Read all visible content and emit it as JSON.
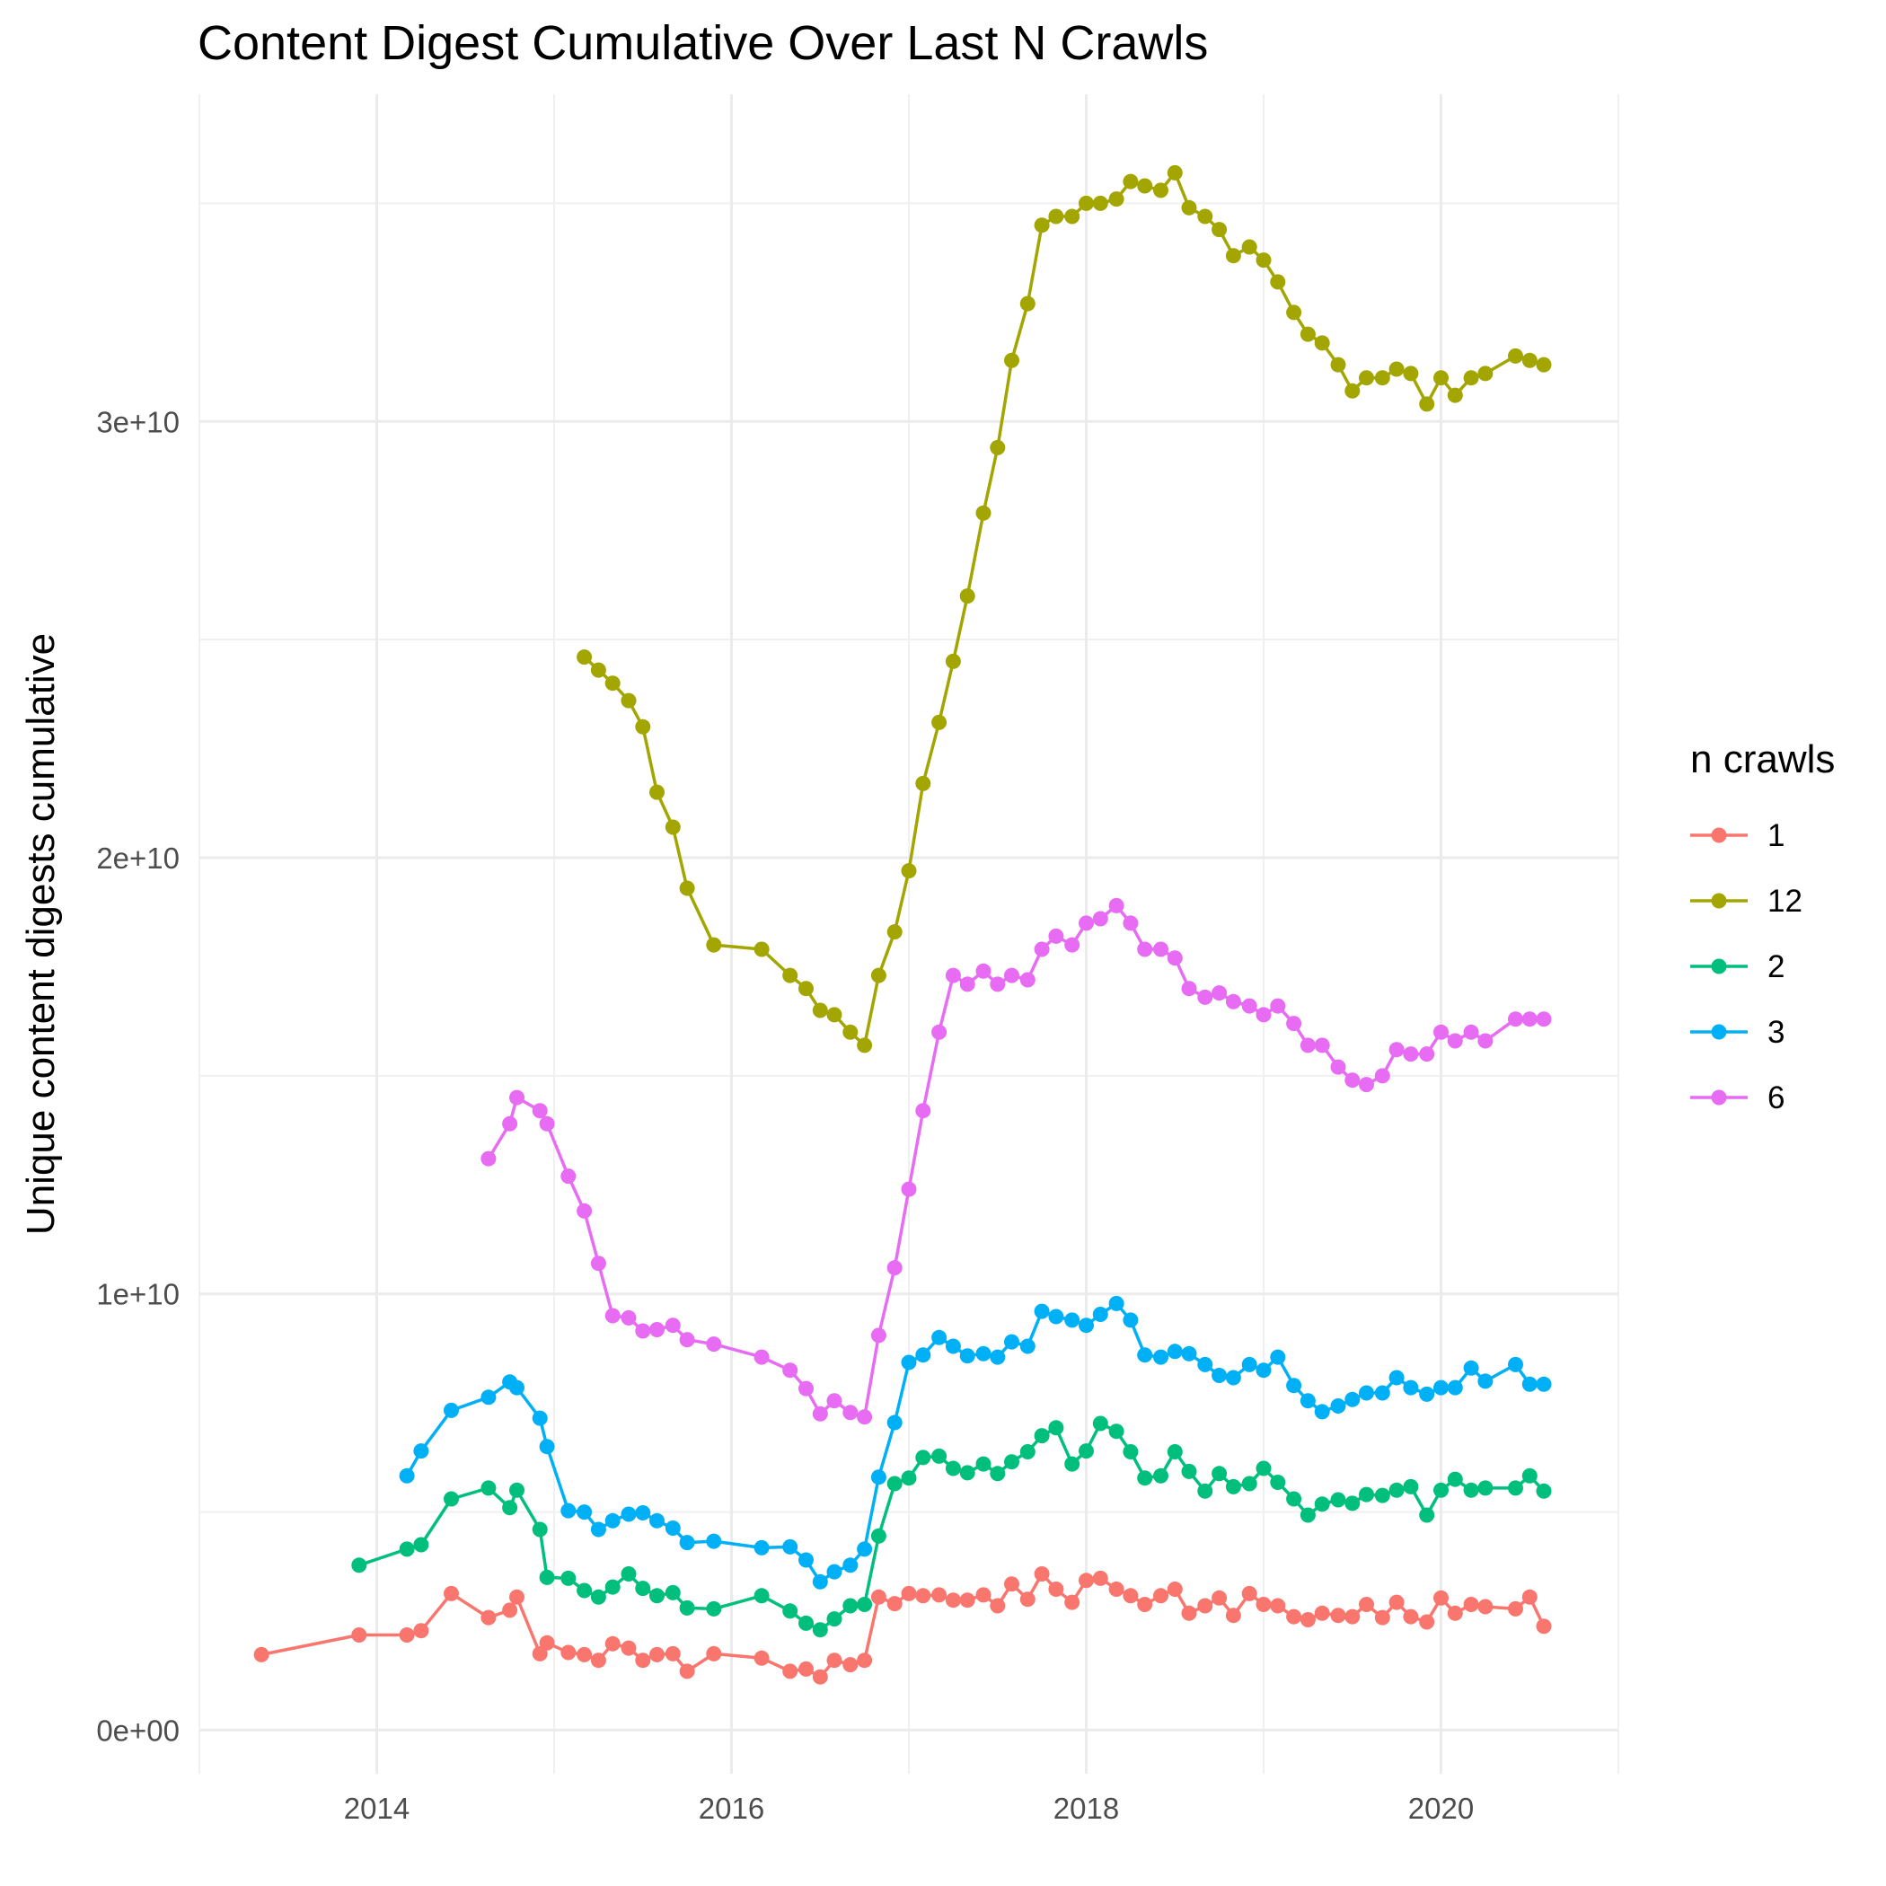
{
  "chart_data": {
    "type": "line",
    "title": "Content Digest Cumulative Over Last N Crawls",
    "xlabel": "",
    "ylabel": "Unique content digests cumulative",
    "xlim": [
      2013.0,
      2021.0
    ],
    "ylim": [
      -1000000000.0,
      37500000000.0
    ],
    "x_ticks": [
      2014,
      2016,
      2018,
      2020
    ],
    "x_tick_labels": [
      "2014",
      "2016",
      "2018",
      "2020"
    ],
    "y_ticks": [
      0,
      10000000000.0,
      20000000000.0,
      30000000000.0
    ],
    "y_tick_labels": [
      "0e+00",
      "1e+10",
      "2e+10",
      "3e+10"
    ],
    "grid": true,
    "legend": {
      "title": "n crawls",
      "position": "right"
    },
    "series": [
      {
        "name": "1",
        "color": "#F8766D",
        "x": [
          2013.35,
          2013.9,
          2014.17,
          2014.25,
          2014.42,
          2014.63,
          2014.75,
          2014.79,
          2014.92,
          2014.96,
          2015.08,
          2015.17,
          2015.25,
          2015.33,
          2015.42,
          2015.5,
          2015.58,
          2015.67,
          2015.75,
          2015.9,
          2016.17,
          2016.33,
          2016.42,
          2016.5,
          2016.58,
          2016.67,
          2016.75,
          2016.83,
          2016.92,
          2017.0,
          2017.08,
          2017.17,
          2017.25,
          2017.33,
          2017.42,
          2017.5,
          2017.58,
          2017.67,
          2017.75,
          2017.83,
          2017.92,
          2018.0,
          2018.08,
          2018.17,
          2018.25,
          2018.33,
          2018.42,
          2018.5,
          2018.58,
          2018.67,
          2018.75,
          2018.83,
          2018.92,
          2019.0,
          2019.08,
          2019.17,
          2019.25,
          2019.33,
          2019.42,
          2019.5,
          2019.58,
          2019.67,
          2019.75,
          2019.83,
          2019.92,
          2020.0,
          2020.08,
          2020.17,
          2020.25,
          2020.42,
          2020.5,
          2020.58
        ],
        "y": [
          1730000000.0,
          2180000000.0,
          2180000000.0,
          2280000000.0,
          3130000000.0,
          2580000000.0,
          2750000000.0,
          3050000000.0,
          1750000000.0,
          2000000000.0,
          1780000000.0,
          1730000000.0,
          1600000000.0,
          1980000000.0,
          1880000000.0,
          1600000000.0,
          1730000000.0,
          1750000000.0,
          1350000000.0,
          1750000000.0,
          1650000000.0,
          1350000000.0,
          1400000000.0,
          1220000000.0,
          1600000000.0,
          1500000000.0,
          1600000000.0,
          3050000000.0,
          2900000000.0,
          3130000000.0,
          3080000000.0,
          3100000000.0,
          2980000000.0,
          2980000000.0,
          3100000000.0,
          2850000000.0,
          3350000000.0,
          3000000000.0,
          3580000000.0,
          3230000000.0,
          2930000000.0,
          3430000000.0,
          3480000000.0,
          3230000000.0,
          3080000000.0,
          2880000000.0,
          3080000000.0,
          3230000000.0,
          2680000000.0,
          2850000000.0,
          3030000000.0,
          2630000000.0,
          3130000000.0,
          2880000000.0,
          2850000000.0,
          2600000000.0,
          2530000000.0,
          2680000000.0,
          2630000000.0,
          2600000000.0,
          2880000000.0,
          2580000000.0,
          2930000000.0,
          2600000000.0,
          2480000000.0,
          3030000000.0,
          2680000000.0,
          2880000000.0,
          2830000000.0,
          2780000000.0,
          3050000000.0,
          2380000000.0
        ]
      },
      {
        "name": "12",
        "color": "#A3A500",
        "x": [
          2015.17,
          2015.25,
          2015.33,
          2015.42,
          2015.5,
          2015.58,
          2015.67,
          2015.75,
          2015.9,
          2016.17,
          2016.33,
          2016.42,
          2016.5,
          2016.58,
          2016.67,
          2016.75,
          2016.83,
          2016.92,
          2017.0,
          2017.08,
          2017.17,
          2017.25,
          2017.33,
          2017.42,
          2017.5,
          2017.58,
          2017.67,
          2017.75,
          2017.83,
          2017.92,
          2018.0,
          2018.08,
          2018.17,
          2018.25,
          2018.33,
          2018.42,
          2018.5,
          2018.58,
          2018.67,
          2018.75,
          2018.83,
          2018.92,
          2019.0,
          2019.08,
          2019.17,
          2019.25,
          2019.33,
          2019.42,
          2019.5,
          2019.58,
          2019.67,
          2019.75,
          2019.83,
          2019.92,
          2020.0,
          2020.08,
          2020.17,
          2020.25,
          2020.42,
          2020.5,
          2020.58
        ],
        "y": [
          24600000000.0,
          24300000000.0,
          24000000000.0,
          23600000000.0,
          23000000000.0,
          21500000000.0,
          20700000000.0,
          19300000000.0,
          18000000000.0,
          17900000000.0,
          17300000000.0,
          17000000000.0,
          16500000000.0,
          16400000000.0,
          16000000000.0,
          15700000000.0,
          17300000000.0,
          18300000000.0,
          19700000000.0,
          21700000000.0,
          23100000000.0,
          24500000000.0,
          26000000000.0,
          27900000000.0,
          29400000000.0,
          31400000000.0,
          32700000000.0,
          34500000000.0,
          34700000000.0,
          34700000000.0,
          35000000000.0,
          35000000000.0,
          35100000000.0,
          35500000000.0,
          35400000000.0,
          35300000000.0,
          35700000000.0,
          34900000000.0,
          34700000000.0,
          34400000000.0,
          33800000000.0,
          34000000000.0,
          33700000000.0,
          33200000000.0,
          32500000000.0,
          32000000000.0,
          31800000000.0,
          31300000000.0,
          30700000000.0,
          31000000000.0,
          31000000000.0,
          31200000000.0,
          31100000000.0,
          30400000000.0,
          31000000000.0,
          30600000000.0,
          31000000000.0,
          31100000000.0,
          31500000000.0,
          31400000000.0,
          31300000000.0
        ]
      },
      {
        "name": "2",
        "color": "#00BF7D",
        "x": [
          2013.9,
          2014.17,
          2014.25,
          2014.42,
          2014.63,
          2014.75,
          2014.79,
          2014.92,
          2014.96,
          2015.08,
          2015.17,
          2015.25,
          2015.33,
          2015.42,
          2015.5,
          2015.58,
          2015.67,
          2015.75,
          2015.9,
          2016.17,
          2016.33,
          2016.42,
          2016.5,
          2016.58,
          2016.67,
          2016.75,
          2016.83,
          2016.92,
          2017.0,
          2017.08,
          2017.17,
          2017.25,
          2017.33,
          2017.42,
          2017.5,
          2017.58,
          2017.67,
          2017.75,
          2017.83,
          2017.92,
          2018.0,
          2018.08,
          2018.17,
          2018.25,
          2018.33,
          2018.42,
          2018.5,
          2018.58,
          2018.67,
          2018.75,
          2018.83,
          2018.92,
          2019.0,
          2019.08,
          2019.17,
          2019.25,
          2019.33,
          2019.42,
          2019.5,
          2019.58,
          2019.67,
          2019.75,
          2019.83,
          2019.92,
          2020.0,
          2020.08,
          2020.17,
          2020.25,
          2020.42,
          2020.5,
          2020.58
        ],
        "y": [
          3780000000.0,
          4150000000.0,
          4250000000.0,
          5300000000.0,
          5550000000.0,
          5100000000.0,
          5500000000.0,
          4600000000.0,
          3500000000.0,
          3480000000.0,
          3200000000.0,
          3050000000.0,
          3280000000.0,
          3580000000.0,
          3250000000.0,
          3080000000.0,
          3150000000.0,
          2800000000.0,
          2780000000.0,
          3080000000.0,
          2730000000.0,
          2450000000.0,
          2300000000.0,
          2550000000.0,
          2850000000.0,
          2880000000.0,
          4450000000.0,
          5650000000.0,
          5780000000.0,
          6250000000.0,
          6280000000.0,
          6000000000.0,
          5900000000.0,
          6100000000.0,
          5880000000.0,
          6150000000.0,
          6380000000.0,
          6750000000.0,
          6930000000.0,
          6100000000.0,
          6400000000.0,
          7030000000.0,
          6850000000.0,
          6380000000.0,
          5780000000.0,
          5830000000.0,
          6380000000.0,
          5930000000.0,
          5480000000.0,
          5880000000.0,
          5580000000.0,
          5650000000.0,
          6000000000.0,
          5680000000.0,
          5300000000.0,
          4930000000.0,
          5180000000.0,
          5280000000.0,
          5200000000.0,
          5400000000.0,
          5380000000.0,
          5500000000.0,
          5580000000.0,
          4930000000.0,
          5500000000.0,
          5750000000.0,
          5500000000.0,
          5550000000.0,
          5550000000.0,
          5830000000.0,
          5480000000.0
        ]
      },
      {
        "name": "3",
        "color": "#00B0F6",
        "x": [
          2014.17,
          2014.25,
          2014.42,
          2014.63,
          2014.75,
          2014.79,
          2014.92,
          2014.96,
          2015.08,
          2015.17,
          2015.25,
          2015.33,
          2015.42,
          2015.5,
          2015.58,
          2015.67,
          2015.75,
          2015.9,
          2016.17,
          2016.33,
          2016.42,
          2016.5,
          2016.58,
          2016.67,
          2016.75,
          2016.83,
          2016.92,
          2017.0,
          2017.08,
          2017.17,
          2017.25,
          2017.33,
          2017.42,
          2017.5,
          2017.58,
          2017.67,
          2017.75,
          2017.83,
          2017.92,
          2018.0,
          2018.08,
          2018.17,
          2018.25,
          2018.33,
          2018.42,
          2018.5,
          2018.58,
          2018.67,
          2018.75,
          2018.83,
          2018.92,
          2019.0,
          2019.08,
          2019.17,
          2019.25,
          2019.33,
          2019.42,
          2019.5,
          2019.58,
          2019.67,
          2019.75,
          2019.83,
          2019.92,
          2020.0,
          2020.08,
          2020.17,
          2020.25,
          2020.42,
          2020.5,
          2020.58
        ],
        "y": [
          5830000000.0,
          6400000000.0,
          7330000000.0,
          7630000000.0,
          7980000000.0,
          7850000000.0,
          7150000000.0,
          6500000000.0,
          5030000000.0,
          5000000000.0,
          4600000000.0,
          4800000000.0,
          4950000000.0,
          4980000000.0,
          4800000000.0,
          4630000000.0,
          4300000000.0,
          4330000000.0,
          4180000000.0,
          4200000000.0,
          3900000000.0,
          3400000000.0,
          3630000000.0,
          3780000000.0,
          4150000000.0,
          5800000000.0,
          7050000000.0,
          8430000000.0,
          8600000000.0,
          9000000000.0,
          8800000000.0,
          8580000000.0,
          8630000000.0,
          8550000000.0,
          8900000000.0,
          8800000000.0,
          9600000000.0,
          9480000000.0,
          9400000000.0,
          9280000000.0,
          9530000000.0,
          9780000000.0,
          9400000000.0,
          8600000000.0,
          8550000000.0,
          8680000000.0,
          8630000000.0,
          8380000000.0,
          8130000000.0,
          8080000000.0,
          8380000000.0,
          8250000000.0,
          8550000000.0,
          7900000000.0,
          7550000000.0,
          7300000000.0,
          7430000000.0,
          7580000000.0,
          7730000000.0,
          7730000000.0,
          8080000000.0,
          7850000000.0,
          7700000000.0,
          7850000000.0,
          7850000000.0,
          8300000000.0,
          8000000000.0,
          8380000000.0,
          7930000000.0,
          7930000000.0
        ]
      },
      {
        "name": "6",
        "color": "#E76BF3",
        "x": [
          2014.63,
          2014.75,
          2014.79,
          2014.92,
          2014.96,
          2015.08,
          2015.17,
          2015.25,
          2015.33,
          2015.42,
          2015.5,
          2015.58,
          2015.67,
          2015.75,
          2015.9,
          2016.17,
          2016.33,
          2016.42,
          2016.5,
          2016.58,
          2016.67,
          2016.75,
          2016.83,
          2016.92,
          2017.0,
          2017.08,
          2017.17,
          2017.25,
          2017.33,
          2017.42,
          2017.5,
          2017.58,
          2017.67,
          2017.75,
          2017.83,
          2017.92,
          2018.0,
          2018.08,
          2018.17,
          2018.25,
          2018.33,
          2018.42,
          2018.5,
          2018.58,
          2018.67,
          2018.75,
          2018.83,
          2018.92,
          2019.0,
          2019.08,
          2019.17,
          2019.25,
          2019.33,
          2019.42,
          2019.5,
          2019.58,
          2019.67,
          2019.75,
          2019.83,
          2019.92,
          2020.0,
          2020.08,
          2020.17,
          2020.25,
          2020.42,
          2020.5,
          2020.58
        ],
        "y": [
          13100000000.0,
          13900000000.0,
          14500000000.0,
          14200000000.0,
          13900000000.0,
          12700000000.0,
          11900000000.0,
          10700000000.0,
          9500000000.0,
          9450000000.0,
          9150000000.0,
          9180000000.0,
          9280000000.0,
          8950000000.0,
          8850000000.0,
          8550000000.0,
          8250000000.0,
          7830000000.0,
          7250000000.0,
          7550000000.0,
          7280000000.0,
          7180000000.0,
          9050000000.0,
          10600000000.0,
          12400000000.0,
          14200000000.0,
          16000000000.0,
          17300000000.0,
          17100000000.0,
          17400000000.0,
          17100000000.0,
          17300000000.0,
          17200000000.0,
          17900000000.0,
          18200000000.0,
          18000000000.0,
          18500000000.0,
          18600000000.0,
          18900000000.0,
          18500000000.0,
          17900000000.0,
          17900000000.0,
          17700000000.0,
          17000000000.0,
          16800000000.0,
          16900000000.0,
          16700000000.0,
          16600000000.0,
          16400000000.0,
          16600000000.0,
          16200000000.0,
          15700000000.0,
          15700000000.0,
          15200000000.0,
          14900000000.0,
          14800000000.0,
          15000000000.0,
          15600000000.0,
          15500000000.0,
          15500000000.0,
          16000000000.0,
          15800000000.0,
          16000000000.0,
          15800000000.0,
          16300000000.0,
          16300000000.0,
          16300000000.0
        ]
      }
    ]
  }
}
